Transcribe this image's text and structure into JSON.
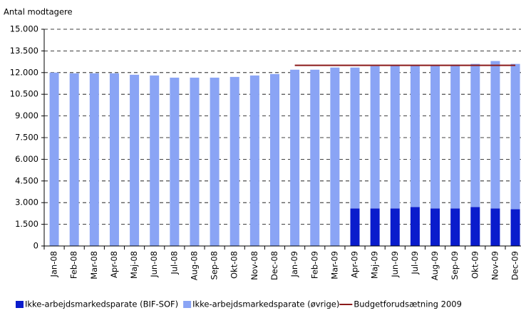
{
  "chart_data": {
    "type": "bar",
    "stacked": true,
    "y_label": "Antal modtagere",
    "categories": [
      "Jan-08",
      "Feb-08",
      "Mar-08",
      "Apr-08",
      "Maj-08",
      "Jun-08",
      "Jul-08",
      "Aug-08",
      "Sep-08",
      "Okt-08",
      "Nov-08",
      "Dec-08",
      "Jan-09",
      "Feb-09",
      "Mar-09",
      "Apr-09",
      "Maj-09",
      "Jun-09",
      "Jul-09",
      "Aug-09",
      "Sep-09",
      "Okt-09",
      "Nov-09",
      "Dec-09"
    ],
    "series": [
      {
        "name": "Ikke-arbejdsmarkedsparate (BIF-SOF)",
        "color": "#0a1ccc",
        "type": "bar",
        "values": [
          null,
          null,
          null,
          null,
          null,
          null,
          null,
          null,
          null,
          null,
          null,
          null,
          null,
          null,
          null,
          2600,
          2600,
          2600,
          2700,
          2600,
          2600,
          2700,
          2600,
          2550
        ]
      },
      {
        "name": "Ikke-arbejdsmarkedsparate (øvrige)",
        "color": "#8aa4f5",
        "type": "bar",
        "values": [
          12000,
          11950,
          11950,
          11950,
          11850,
          11800,
          11650,
          11650,
          11650,
          11700,
          11800,
          11900,
          12200,
          12200,
          12350,
          9750,
          9850,
          9900,
          9800,
          9900,
          9950,
          9900,
          10200,
          10050
        ]
      },
      {
        "name": "Budgetforudsætning 2009",
        "color": "#8b1a1a",
        "type": "line",
        "values": [
          null,
          null,
          null,
          null,
          null,
          null,
          null,
          null,
          null,
          null,
          null,
          null,
          12500,
          12500,
          12500,
          12500,
          12500,
          12500,
          12500,
          12500,
          12500,
          12500,
          12500,
          12500
        ]
      }
    ],
    "ylim": [
      0,
      15000
    ],
    "yticks": [
      0,
      {
        "value": 1500,
        "label": "1.500"
      },
      {
        "value": 3000,
        "label": "3.000"
      },
      {
        "value": 4500,
        "label": "4.500"
      },
      {
        "value": 6000,
        "label": "6.000"
      },
      {
        "value": 7500,
        "label": "7.500"
      },
      {
        "value": 9000,
        "label": "9.000"
      },
      {
        "value": 10500,
        "label": "10.500"
      },
      {
        "value": 12000,
        "label": "12.000"
      },
      {
        "value": 13500,
        "label": "13.500"
      },
      {
        "value": 15000,
        "label": "15.000"
      }
    ],
    "grid": true
  }
}
